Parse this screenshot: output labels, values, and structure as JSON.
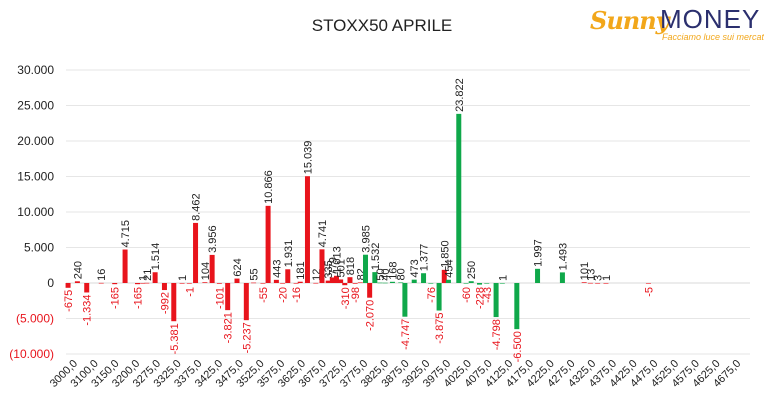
{
  "chart_data": {
    "type": "bar",
    "title": "STOXX50 APRILE",
    "ylim": [
      -10000,
      30000
    ],
    "yticks": [
      {
        "value": 30000,
        "label": "30.000"
      },
      {
        "value": 25000,
        "label": "25.000"
      },
      {
        "value": 20000,
        "label": "20.000"
      },
      {
        "value": 15000,
        "label": "15.000"
      },
      {
        "value": 10000,
        "label": "10.000"
      },
      {
        "value": 5000,
        "label": "5.000"
      },
      {
        "value": 0,
        "label": "0"
      },
      {
        "value": -5000,
        "label": "(5.000)"
      },
      {
        "value": -10000,
        "label": "(10.000)"
      }
    ],
    "grid": true,
    "categories": [
      "3000,0",
      "3100,0",
      "3150,0",
      "3200,0",
      "3275,0",
      "3325,0",
      "3375,0",
      "3425,0",
      "3475,0",
      "3525,0",
      "3575,0",
      "3625,0",
      "3675,0",
      "3725,0",
      "3775,0",
      "3825,0",
      "3875,0",
      "3925,0",
      "3975,0",
      "4025,0",
      "4075,0",
      "4125,0",
      "4175,0",
      "4225,0",
      "4275,0",
      "4325,0",
      "4375,0",
      "4425,0",
      "4475,0",
      "4525,0",
      "4575,0",
      "4625,0",
      "4675,0"
    ],
    "bars": [
      {
        "x": 0.1,
        "value": -675,
        "label": "-675",
        "color": "#e8141c"
      },
      {
        "x": 0.55,
        "value": 240,
        "label": "240",
        "color": "#e8141c"
      },
      {
        "x": 1.0,
        "value": -1334,
        "label": "-1.334",
        "color": "#e8141c"
      },
      {
        "x": 1.7,
        "value": 16,
        "label": "16",
        "color": "#e8141c"
      },
      {
        "x": 2.35,
        "value": -165,
        "label": "-165",
        "color": "#e8141c"
      },
      {
        "x": 2.85,
        "value": 4715,
        "label": "4.715",
        "color": "#e8141c"
      },
      {
        "x": 3.45,
        "value": -165,
        "label": "-165",
        "color": "#e8141c"
      },
      {
        "x": 3.7,
        "value": 1,
        "label": "1",
        "color": "#e8141c"
      },
      {
        "x": 3.9,
        "value": 21,
        "label": "21",
        "color": "#e8141c"
      },
      {
        "x": 4.3,
        "value": 1514,
        "label": "1.514",
        "color": "#e8141c"
      },
      {
        "x": 4.75,
        "value": -992,
        "label": "-992",
        "color": "#e8141c"
      },
      {
        "x": 5.2,
        "value": -5381,
        "label": "-5.381",
        "color": "#e8141c"
      },
      {
        "x": 5.6,
        "value": 1,
        "label": "1",
        "color": "#e8141c"
      },
      {
        "x": 5.95,
        "value": -1,
        "label": "-1",
        "color": "#e8141c"
      },
      {
        "x": 6.25,
        "value": 8462,
        "label": "8.462",
        "color": "#e8141c"
      },
      {
        "x": 6.7,
        "value": 104,
        "label": "104",
        "color": "#e8141c"
      },
      {
        "x": 7.05,
        "value": 3956,
        "label": "3.956",
        "color": "#e8141c"
      },
      {
        "x": 7.4,
        "value": -101,
        "label": "-101",
        "color": "#e8141c"
      },
      {
        "x": 7.8,
        "value": -3821,
        "label": "-3.821",
        "color": "#e8141c"
      },
      {
        "x": 8.25,
        "value": 624,
        "label": "624",
        "color": "#e8141c"
      },
      {
        "x": 8.7,
        "value": -5237,
        "label": "-5.237",
        "color": "#e8141c"
      },
      {
        "x": 9.05,
        "value": 55,
        "label": "55",
        "color": "#e8141c"
      },
      {
        "x": 9.5,
        "value": -55,
        "label": "-55",
        "color": "#e8141c"
      },
      {
        "x": 9.75,
        "value": 10866,
        "label": "10.866",
        "color": "#e8141c"
      },
      {
        "x": 10.15,
        "value": 443,
        "label": "443",
        "color": "#e8141c"
      },
      {
        "x": 10.45,
        "value": -20,
        "label": "-20",
        "color": "#e8141c"
      },
      {
        "x": 10.7,
        "value": 1931,
        "label": "1.931",
        "color": "#e8141c"
      },
      {
        "x": 11.1,
        "value": -16,
        "label": "-16",
        "color": "#e8141c"
      },
      {
        "x": 11.3,
        "value": 181,
        "label": "181",
        "color": "#e8141c"
      },
      {
        "x": 11.65,
        "value": 15039,
        "label": "15.039",
        "color": "#e8141c"
      },
      {
        "x": 12.05,
        "value": 12,
        "label": "12",
        "color": "#e8141c"
      },
      {
        "x": 12.35,
        "value": 4741,
        "label": "4.741",
        "color": "#e8141c"
      },
      {
        "x": 12.65,
        "value": 335,
        "label": "335",
        "color": "#e8141c"
      },
      {
        "x": 12.85,
        "value": 779,
        "label": "779",
        "color": "#e8141c"
      },
      {
        "x": 13.05,
        "value": 1013,
        "label": "1.013",
        "color": "#e8141c"
      },
      {
        "x": 13.25,
        "value": 501,
        "label": "501",
        "color": "#e8141c"
      },
      {
        "x": 13.45,
        "value": -310,
        "label": "-310",
        "color": "#e8141c"
      },
      {
        "x": 13.7,
        "value": 818,
        "label": "818",
        "color": "#e8141c"
      },
      {
        "x": 13.95,
        "value": -98,
        "label": "-98",
        "color": "#e8141c"
      },
      {
        "x": 14.2,
        "value": 82,
        "label": "82",
        "color": "#e8141c"
      },
      {
        "x": 14.45,
        "value": 3985,
        "label": "3.985",
        "color": "#0fa84a"
      },
      {
        "x": 14.65,
        "value": -2070,
        "label": "-2.070",
        "color": "#e8141c"
      },
      {
        "x": 14.9,
        "value": 1532,
        "label": "1.532",
        "color": "#0fa84a"
      },
      {
        "x": 15.15,
        "value": 50,
        "label": "50",
        "color": "#0fa84a"
      },
      {
        "x": 15.4,
        "value": 40,
        "label": "40",
        "color": "#0fa84a"
      },
      {
        "x": 15.75,
        "value": 168,
        "label": "168",
        "color": "#0fa84a"
      },
      {
        "x": 16.15,
        "value": 80,
        "label": "80",
        "color": "#0fa84a"
      },
      {
        "x": 16.35,
        "value": -4747,
        "label": "-4.747",
        "color": "#0fa84a"
      },
      {
        "x": 16.8,
        "value": 473,
        "label": "473",
        "color": "#0fa84a"
      },
      {
        "x": 17.25,
        "value": 1377,
        "label": "1.377",
        "color": "#0fa84a"
      },
      {
        "x": 17.6,
        "value": -76,
        "label": "-76",
        "color": "#0fa84a"
      },
      {
        "x": 18.0,
        "value": -3875,
        "label": "-3.875",
        "color": "#0fa84a"
      },
      {
        "x": 18.25,
        "value": 1850,
        "label": "1.850",
        "color": "#e8141c"
      },
      {
        "x": 18.45,
        "value": 454,
        "label": "454",
        "color": "#0fa84a"
      },
      {
        "x": 18.95,
        "value": 23822,
        "label": "23.822",
        "color": "#0fa84a"
      },
      {
        "x": 19.3,
        "value": -60,
        "label": "-60",
        "color": "#0fa84a"
      },
      {
        "x": 19.55,
        "value": 250,
        "label": "250",
        "color": "#0fa84a"
      },
      {
        "x": 19.95,
        "value": -228,
        "label": "-228",
        "color": "#0fa84a"
      },
      {
        "x": 20.3,
        "value": -43,
        "label": "-43",
        "color": "#0fa84a"
      },
      {
        "x": 20.75,
        "value": -4798,
        "label": "-4.798",
        "color": "#0fa84a"
      },
      {
        "x": 21.05,
        "value": 1,
        "label": "1",
        "color": "#0fa84a"
      },
      {
        "x": 21.75,
        "value": -6500,
        "label": "-6.500",
        "color": "#0fa84a"
      },
      {
        "x": 22.75,
        "value": 1997,
        "label": "1.997",
        "color": "#0fa84a"
      },
      {
        "x": 23.95,
        "value": 1493,
        "label": "1.493",
        "color": "#0fa84a"
      },
      {
        "x": 25.0,
        "value": 101,
        "label": "101",
        "color": "#e8141c"
      },
      {
        "x": 25.3,
        "value": 13,
        "label": "13",
        "color": "#e8141c"
      },
      {
        "x": 25.65,
        "value": 3,
        "label": "3",
        "color": "#e8141c"
      },
      {
        "x": 26.05,
        "value": 1,
        "label": "1",
        "color": "#e8141c"
      },
      {
        "x": 28.1,
        "value": -5,
        "label": "-5",
        "color": "#e8141c"
      }
    ],
    "colors": {
      "negative_label": "#e8141c",
      "positive_label": "#222222",
      "grid": "#e6e6e6"
    }
  },
  "logo": {
    "word1": "Sunny",
    "word2": "MONEY",
    "tagline": "Facciamo luce sui mercati"
  }
}
